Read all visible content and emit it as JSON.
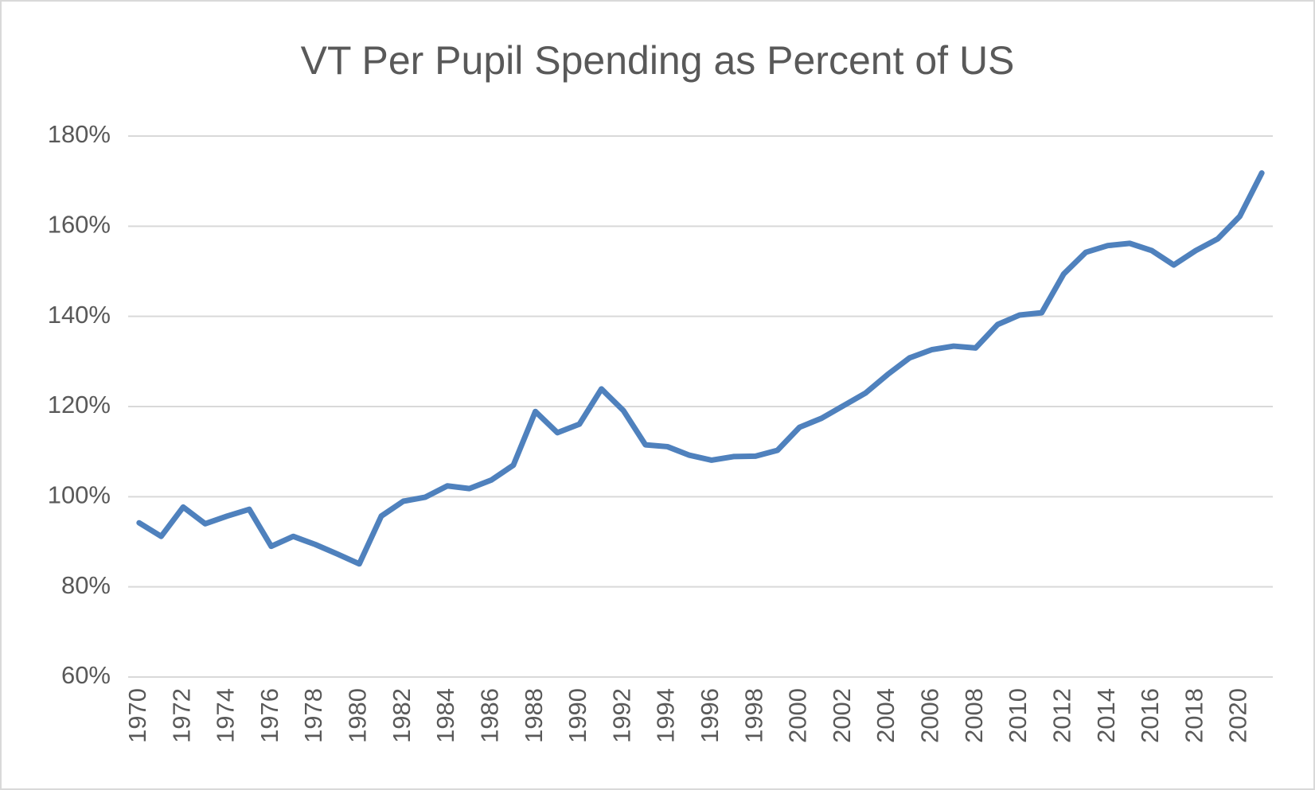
{
  "chart_data": {
    "type": "line",
    "title": "VT Per Pupil Spending as Percent of US",
    "categories": [
      "1970",
      null,
      "1972",
      null,
      "1974",
      null,
      "1976",
      null,
      "1978",
      null,
      "1980",
      null,
      "1982",
      null,
      "1984",
      null,
      "1986",
      null,
      "1988",
      null,
      "1990",
      null,
      "1992",
      null,
      "1994",
      null,
      "1996",
      null,
      "1998",
      null,
      "2000",
      null,
      "2002",
      null,
      "2004",
      null,
      "2006",
      null,
      "2008",
      null,
      "2010",
      null,
      "2012",
      null,
      "2014",
      null,
      "2016",
      null,
      "2018",
      null,
      "2020",
      null
    ],
    "values": [
      94.2,
      91.2,
      97.7,
      94,
      95.7,
      97.2,
      89,
      91.2,
      89.4,
      87.3,
      85.1,
      95.7,
      99,
      99.9,
      102.4,
      101.8,
      103.7,
      107,
      118.9,
      114.2,
      116.1,
      123.9,
      119.1,
      111.5,
      111.1,
      109.2,
      108.1,
      108.9,
      109,
      110.3,
      115.4,
      117.4,
      120.2,
      123,
      127.1,
      130.8,
      132.6,
      133.4,
      133,
      138.2,
      140.3,
      140.8,
      149.4,
      154.2,
      155.7,
      156.2,
      154.6,
      151.4,
      154.6,
      157.2,
      162.2,
      171.8
    ],
    "color": "#4f81bd",
    "ylim": [
      60,
      180
    ],
    "yticks": [
      {
        "value": 60,
        "label": "60%"
      },
      {
        "value": 80,
        "label": "80%"
      },
      {
        "value": 100,
        "label": "100%"
      },
      {
        "value": 120,
        "label": "120%"
      },
      {
        "value": 140,
        "label": "140%"
      },
      {
        "value": 160,
        "label": "160%"
      },
      {
        "value": 180,
        "label": "180%"
      }
    ],
    "grid": true
  }
}
